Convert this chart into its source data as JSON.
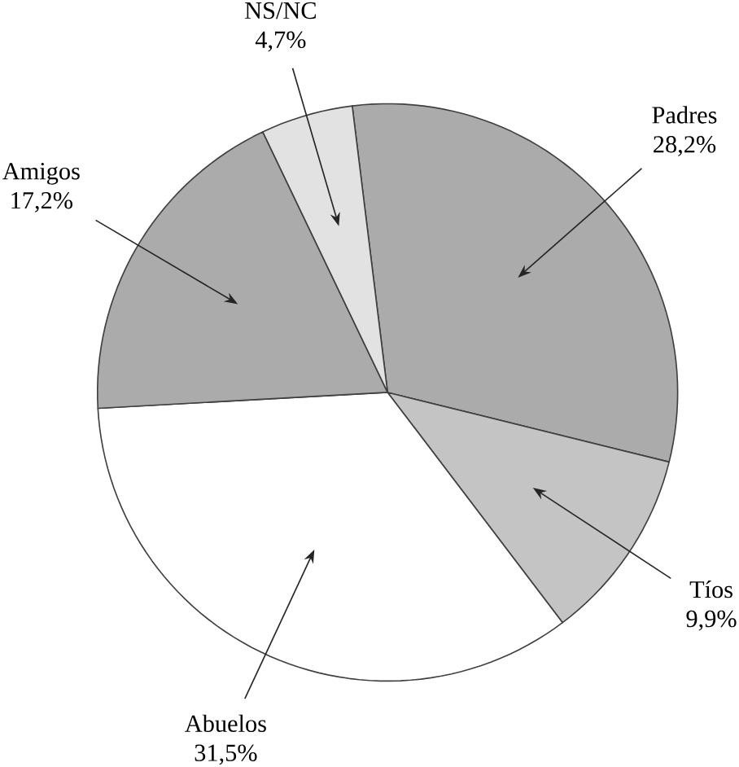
{
  "chart_data": {
    "type": "pie",
    "categories": [
      "Padres",
      "Tíos",
      "Abuelos",
      "Amigos",
      "NS/NC"
    ],
    "values": [
      28.2,
      9.9,
      31.5,
      17.2,
      4.7
    ],
    "value_labels": [
      "28,2%",
      "9,9%",
      "31,5%",
      "17,2%",
      "4,7%"
    ],
    "colors": [
      "#ababab",
      "#c4c4c4",
      "#ffffff",
      "#ababab",
      "#e2e2e2"
    ]
  }
}
